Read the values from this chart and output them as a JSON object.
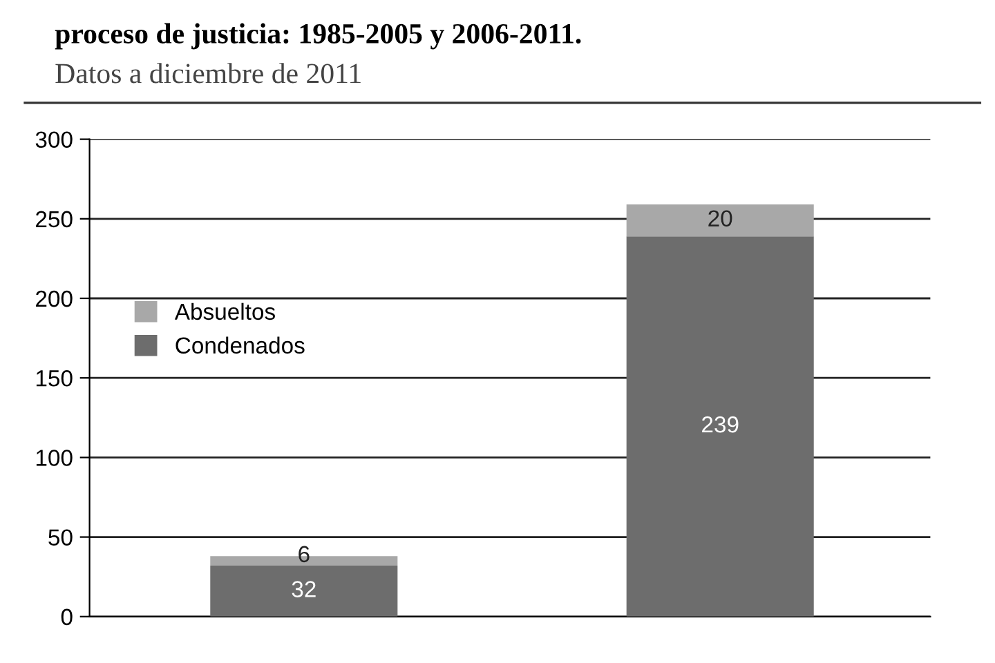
{
  "chart_data": {
    "type": "bar",
    "title": "proceso de justicia: 1985-2005 y 2006-2011.",
    "subtitle": "Datos a diciembre de 2011",
    "categories": [
      null,
      null
    ],
    "stacked": true,
    "series": [
      {
        "name": "Condenados",
        "color": "#6d6d6d",
        "values": [
          32,
          239
        ]
      },
      {
        "name": "Absueltos",
        "color": "#a8a8a8",
        "values": [
          6,
          20
        ]
      }
    ],
    "data_labels": true,
    "ylim": [
      0,
      300
    ],
    "yticks": [
      0,
      50,
      100,
      150,
      200,
      250,
      300
    ],
    "grid": "y",
    "legend": "left"
  }
}
